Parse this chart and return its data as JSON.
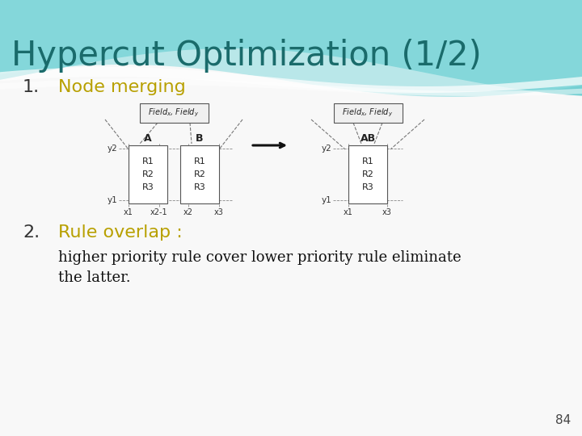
{
  "title": "Hypercut Optimization (1/2)",
  "title_color": "#1a6b6b",
  "title_fontsize": 30,
  "bg_color": "#f8f8f8",
  "item1_label": "1.",
  "item1_text": "Node merging",
  "item1_color": "#b8a000",
  "item2_label": "2.",
  "item2_text": "Rule overlap :",
  "item2_color": "#b8a000",
  "item2_body_line1": "higher priority rule cover lower priority rule eliminate",
  "item2_body_line2": "the latter.",
  "body_color": "#111111",
  "page_number": "84",
  "wave_teal": "#5cc8cc",
  "wave_light": "#90dde0",
  "wave_white": "#e8f8f8"
}
